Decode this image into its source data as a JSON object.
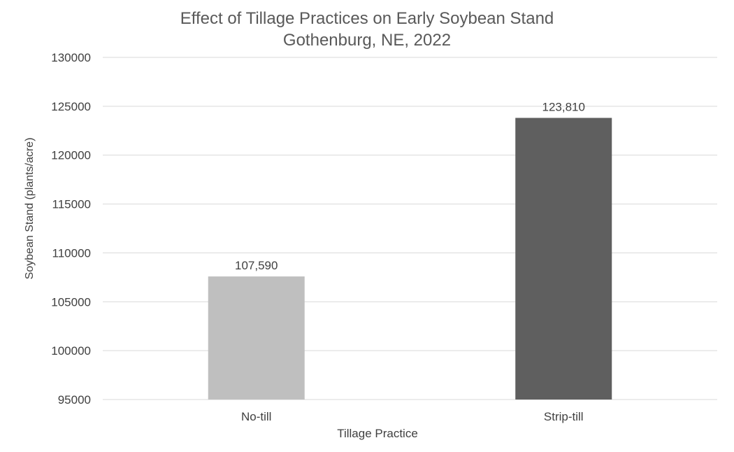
{
  "chart_data": {
    "type": "bar",
    "title": "Effect of Tillage Practices on Early Soybean Stand",
    "subtitle": "Gothenburg, NE, 2022",
    "xlabel": "Tillage Practice",
    "ylabel": "Soybean Stand (plants/acre)",
    "ylim": [
      95000,
      130000
    ],
    "y_ticks": [
      95000,
      100000,
      105000,
      110000,
      115000,
      120000,
      125000,
      130000
    ],
    "grid": true,
    "categories": [
      "No-till",
      "Strip-till"
    ],
    "values": [
      107590,
      123810
    ],
    "data_labels": [
      "107,590",
      "123,810"
    ],
    "bar_colors": [
      "#bfbfbf",
      "#5f5f5f"
    ],
    "colors": {
      "title": "#595959",
      "axis_text": "#404040",
      "gridline": "#d9d9d9",
      "data_label": "#404040"
    }
  }
}
